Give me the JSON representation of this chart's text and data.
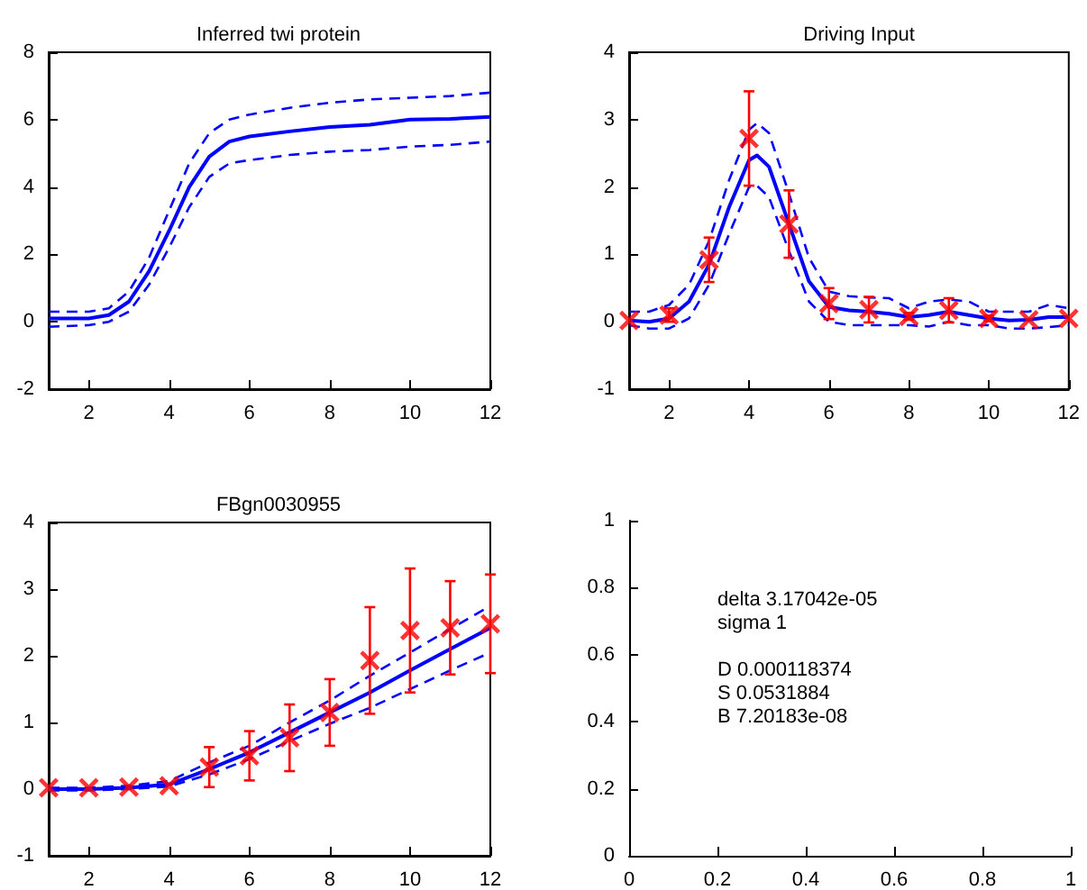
{
  "chart_data": [
    {
      "type": "line",
      "title": "Inferred twi protein",
      "xlim": [
        1,
        12
      ],
      "xticks": [
        2,
        4,
        6,
        8,
        10,
        12
      ],
      "ylim": [
        -2,
        8
      ],
      "yticks": [
        -2,
        0,
        2,
        4,
        6,
        8
      ],
      "series": [
        {
          "color": "#0000ff",
          "marker": "none",
          "line_style": "solid",
          "x": [
            1,
            2,
            2.5,
            3,
            3.5,
            4,
            4.5,
            5,
            5.5,
            6,
            7,
            8,
            9,
            10,
            11,
            12
          ],
          "values": [
            0.1,
            0.1,
            0.2,
            0.6,
            1.5,
            2.7,
            4.0,
            4.9,
            5.35,
            5.5,
            5.65,
            5.78,
            5.85,
            6.0,
            6.02,
            6.08
          ]
        },
        {
          "color": "#0000ff",
          "marker": "none",
          "line_style": "dashed",
          "x": [
            1,
            2,
            2.5,
            3,
            3.5,
            4,
            4.5,
            5,
            5.5,
            6,
            7,
            8,
            9,
            10,
            11,
            12
          ],
          "values": [
            0.3,
            0.3,
            0.4,
            0.9,
            1.9,
            3.3,
            4.7,
            5.6,
            6.0,
            6.15,
            6.35,
            6.5,
            6.6,
            6.65,
            6.7,
            6.8
          ]
        },
        {
          "color": "#0000ff",
          "marker": "none",
          "line_style": "dashed",
          "x": [
            1,
            2,
            2.5,
            3,
            3.5,
            4,
            4.5,
            5,
            5.5,
            6,
            7,
            8,
            9,
            10,
            11,
            12
          ],
          "values": [
            -0.15,
            -0.1,
            0.0,
            0.3,
            1.1,
            2.2,
            3.4,
            4.3,
            4.7,
            4.8,
            4.95,
            5.05,
            5.1,
            5.2,
            5.25,
            5.35
          ]
        }
      ]
    },
    {
      "type": "line",
      "title": "Driving Input",
      "xlim": [
        1,
        12
      ],
      "xticks": [
        2,
        4,
        6,
        8,
        10,
        12
      ],
      "ylim": [
        -1,
        4
      ],
      "yticks": [
        -1,
        0,
        1,
        2,
        3,
        4
      ],
      "series": [
        {
          "color": "#0000ff",
          "marker": "none",
          "line_style": "solid",
          "x": [
            1,
            1.5,
            2,
            2.5,
            3,
            3.5,
            4,
            4.2,
            4.5,
            5,
            5.5,
            6,
            6.5,
            7,
            7.5,
            8,
            8.5,
            9,
            9.5,
            10,
            10.5,
            11,
            11.5,
            12
          ],
          "values": [
            0.02,
            0.0,
            0.05,
            0.3,
            0.85,
            1.7,
            2.4,
            2.47,
            2.3,
            1.45,
            0.6,
            0.22,
            0.17,
            0.15,
            0.12,
            0.07,
            0.1,
            0.15,
            0.1,
            0.05,
            0.02,
            0.03,
            0.07,
            0.07
          ]
        },
        {
          "color": "#0000ff",
          "marker": "none",
          "line_style": "dashed",
          "x": [
            1,
            1.5,
            2,
            2.5,
            3,
            3.5,
            4,
            4.2,
            4.5,
            5,
            5.5,
            6,
            6.5,
            7,
            7.5,
            8,
            8.5,
            9,
            9.5,
            10,
            10.5,
            11,
            11.5,
            12
          ],
          "values": [
            0.15,
            0.15,
            0.25,
            0.55,
            1.2,
            2.1,
            2.85,
            2.95,
            2.8,
            1.9,
            0.95,
            0.45,
            0.38,
            0.36,
            0.35,
            0.2,
            0.3,
            0.33,
            0.3,
            0.15,
            0.15,
            0.15,
            0.25,
            0.2
          ]
        },
        {
          "color": "#0000ff",
          "marker": "none",
          "line_style": "dashed",
          "x": [
            1,
            1.5,
            2,
            2.5,
            3,
            3.5,
            4,
            4.2,
            4.5,
            5,
            5.5,
            6,
            6.5,
            7,
            7.5,
            8,
            8.5,
            9,
            9.5,
            10,
            10.5,
            11,
            11.5,
            12
          ],
          "values": [
            -0.05,
            -0.1,
            -0.1,
            0.05,
            0.55,
            1.3,
            2.0,
            2.02,
            1.85,
            1.05,
            0.3,
            0.0,
            -0.05,
            -0.05,
            -0.05,
            -0.05,
            -0.07,
            0.0,
            -0.05,
            -0.05,
            -0.1,
            -0.1,
            -0.08,
            -0.05
          ]
        },
        {
          "type": "scatter",
          "color": "#ff0000",
          "marker": "cross",
          "x": [
            1,
            2,
            3,
            4,
            5,
            6,
            7,
            8,
            9,
            10,
            11,
            12
          ],
          "values": [
            0.02,
            0.1,
            0.92,
            2.72,
            1.45,
            0.27,
            0.18,
            0.08,
            0.17,
            0.05,
            0.03,
            0.05
          ],
          "errors": [
            null,
            0.1,
            0.33,
            0.7,
            0.5,
            0.23,
            0.19,
            0.05,
            0.18,
            0.04,
            null,
            null
          ]
        }
      ]
    },
    {
      "type": "line",
      "title": "FBgn0030955",
      "xlim": [
        1,
        12
      ],
      "xticks": [
        2,
        4,
        6,
        8,
        10,
        12
      ],
      "ylim": [
        -1,
        4
      ],
      "yticks": [
        -1,
        0,
        1,
        2,
        3,
        4
      ],
      "series": [
        {
          "color": "#0000ff",
          "marker": "none",
          "line_style": "solid",
          "x": [
            1,
            2,
            3,
            4,
            5,
            6,
            7,
            8,
            9,
            10,
            11,
            12
          ],
          "values": [
            0.0,
            0.0,
            0.02,
            0.07,
            0.3,
            0.55,
            0.85,
            1.15,
            1.45,
            1.78,
            2.1,
            2.42
          ]
        },
        {
          "color": "#0000ff",
          "marker": "none",
          "line_style": "dashed",
          "x": [
            1,
            2,
            3,
            4,
            5,
            6,
            7,
            8,
            9,
            10,
            11,
            12
          ],
          "values": [
            0.02,
            0.02,
            0.05,
            0.12,
            0.4,
            0.65,
            1.0,
            1.33,
            1.7,
            2.05,
            2.4,
            2.75
          ]
        },
        {
          "color": "#0000ff",
          "marker": "none",
          "line_style": "dashed",
          "x": [
            1,
            2,
            3,
            4,
            5,
            6,
            7,
            8,
            9,
            10,
            11,
            12
          ],
          "values": [
            -0.02,
            -0.02,
            0.0,
            0.04,
            0.22,
            0.45,
            0.72,
            0.98,
            1.22,
            1.5,
            1.78,
            2.05
          ]
        },
        {
          "type": "scatter",
          "color": "#ff0000",
          "marker": "cross",
          "x": [
            1,
            2,
            3,
            4,
            5,
            6,
            7,
            8,
            9,
            10,
            11,
            12
          ],
          "values": [
            0.02,
            0.02,
            0.03,
            0.05,
            0.33,
            0.5,
            0.77,
            1.15,
            1.93,
            2.38,
            2.42,
            2.48
          ],
          "errors": [
            null,
            null,
            null,
            null,
            0.3,
            0.37,
            0.5,
            0.5,
            0.8,
            0.93,
            0.7,
            0.74
          ]
        }
      ]
    },
    {
      "type": "scatter",
      "xlim": [
        0,
        1
      ],
      "xticks": [
        0,
        0.2,
        0.4,
        0.6,
        0.8,
        1
      ],
      "ylim": [
        0,
        1
      ],
      "yticks": [
        0,
        0.2,
        0.4,
        0.6,
        0.8,
        1
      ],
      "annotations": [
        "delta 3.17042e-05\nsigma 1\n\nD 0.000118374\nS 0.0531884\nB 7.20183e-08"
      ]
    }
  ]
}
